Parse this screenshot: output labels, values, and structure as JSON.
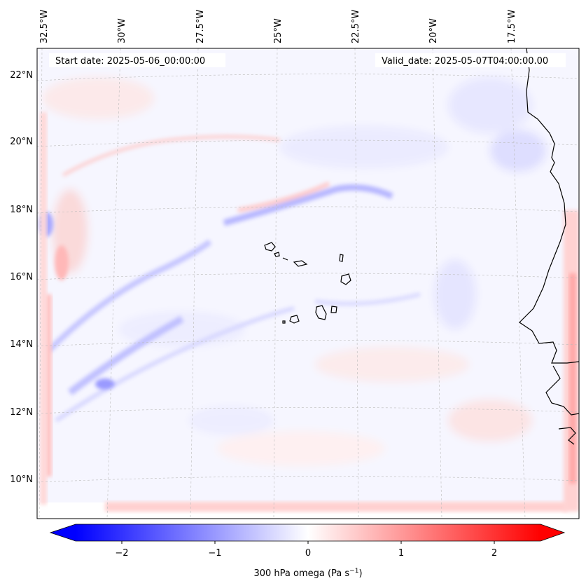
{
  "map": {
    "start_label": "Start date: 2025-05-06_00:00:00",
    "valid_label": "Valid_date: 2025-05-07T04:00:00.00",
    "lon_labels": [
      "32.5°W",
      "30°W",
      "27.5°W",
      "25°W",
      "22.5°W",
      "20°W",
      "17.5°W"
    ],
    "lat_labels": [
      "22°N",
      "20°N",
      "18°N",
      "16°N",
      "14°N",
      "12°N",
      "10°N"
    ],
    "field_colors": {
      "negative": "#0000ff",
      "zero": "#ffffff",
      "positive": "#ff0000"
    },
    "coastline_color": "#000000"
  },
  "colorbar": {
    "label_prefix": "300 hPa omega (Pa s",
    "label_exponent": "−1",
    "label_suffix": ")",
    "ticks": [
      "−2",
      "−1",
      "0",
      "1",
      "2"
    ],
    "range": [
      -2.7,
      2.7
    ],
    "extend": "both"
  }
}
